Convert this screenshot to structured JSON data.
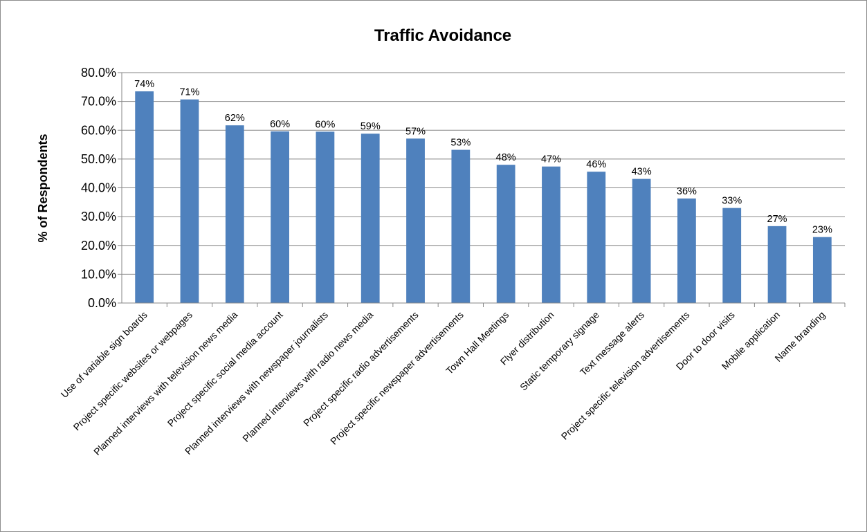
{
  "chart_data": {
    "type": "bar",
    "title": "Traffic Avoidance",
    "xlabel": "",
    "ylabel": "% of Respondents",
    "ylim": [
      0,
      80
    ],
    "yticks": [
      "0.0%",
      "10.0%",
      "20.0%",
      "30.0%",
      "40.0%",
      "50.0%",
      "60.0%",
      "70.0%",
      "80.0%"
    ],
    "grid": "horizontal",
    "legend": "none",
    "bar_color": "#4F81BD",
    "categories": [
      "Use of variable sign boards",
      "Project specific websites or webpages",
      "Planned interviews with television news media",
      "Project specific social media account",
      "Planned interviews with newspaper journalists",
      "Planned interviews with radio news media",
      "Project specific radio advertisements",
      "Project specific newspaper advertisements",
      "Town Hall Meetings",
      "Flyer distribution",
      "Static temporary signage",
      "Text message alerts",
      "Project specific television advertisements",
      "Door to door visits",
      "Mobile application",
      "Name branding"
    ],
    "values": [
      73.5,
      70.7,
      61.7,
      59.6,
      59.5,
      58.8,
      57.1,
      53.2,
      48.0,
      47.4,
      45.6,
      43.1,
      36.3,
      33.0,
      26.7,
      22.9
    ],
    "data_labels": [
      "74%",
      "71%",
      "62%",
      "60%",
      "60%",
      "59%",
      "57%",
      "53%",
      "48%",
      "47%",
      "46%",
      "43%",
      "36%",
      "33%",
      "27%",
      "23%"
    ]
  }
}
